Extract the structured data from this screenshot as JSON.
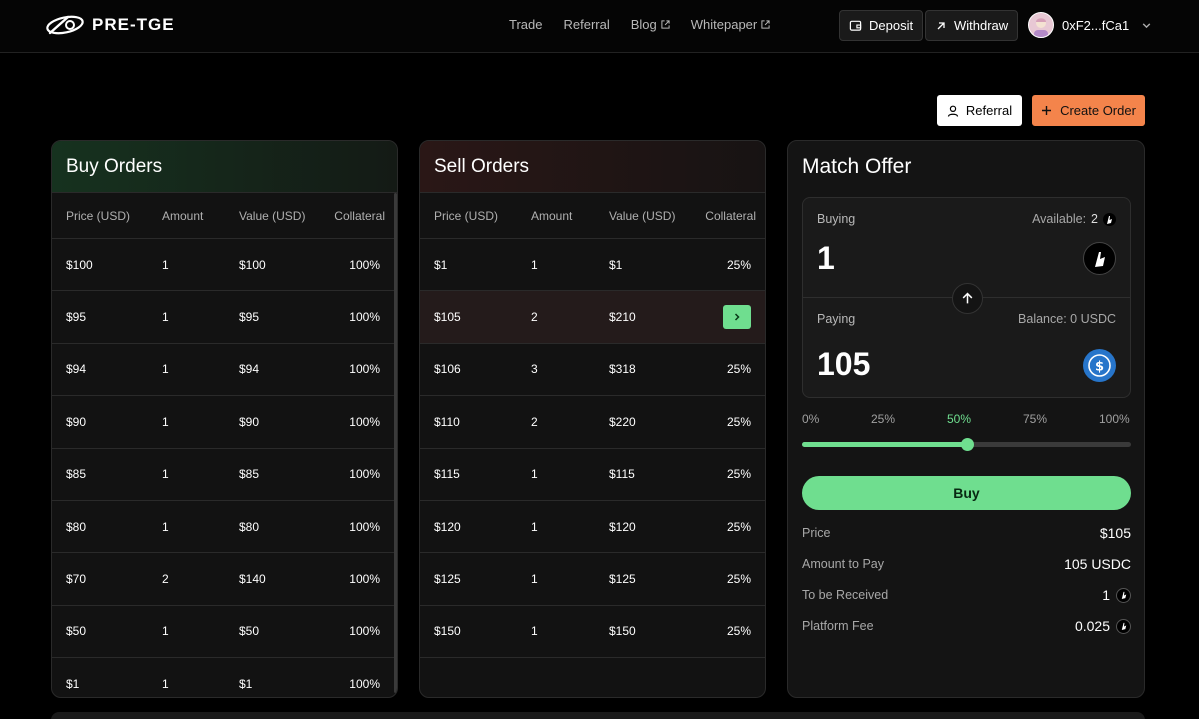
{
  "brand": {
    "name": "PRE-TGE"
  },
  "nav": {
    "trade": "Trade",
    "referral": "Referral",
    "blog": "Blog",
    "whitepaper": "Whitepaper"
  },
  "header": {
    "deposit": "Deposit",
    "withdraw": "Withdraw",
    "wallet": "0xF2...fCa1"
  },
  "actions": {
    "referral": "Referral",
    "create_order": "Create Order"
  },
  "columns": {
    "price": "Price (USD)",
    "amount": "Amount",
    "value": "Value (USD)",
    "collateral": "Collateral"
  },
  "buy_orders": {
    "title": "Buy Orders",
    "rows": [
      {
        "price": "$100",
        "amount": "1",
        "value": "$100",
        "collateral": "100%"
      },
      {
        "price": "$95",
        "amount": "1",
        "value": "$95",
        "collateral": "100%"
      },
      {
        "price": "$94",
        "amount": "1",
        "value": "$94",
        "collateral": "100%"
      },
      {
        "price": "$90",
        "amount": "1",
        "value": "$90",
        "collateral": "100%"
      },
      {
        "price": "$85",
        "amount": "1",
        "value": "$85",
        "collateral": "100%"
      },
      {
        "price": "$80",
        "amount": "1",
        "value": "$80",
        "collateral": "100%"
      },
      {
        "price": "$70",
        "amount": "2",
        "value": "$140",
        "collateral": "100%"
      },
      {
        "price": "$50",
        "amount": "1",
        "value": "$50",
        "collateral": "100%"
      },
      {
        "price": "$1",
        "amount": "1",
        "value": "$1",
        "collateral": "100%"
      }
    ]
  },
  "sell_orders": {
    "title": "Sell Orders",
    "rows": [
      {
        "price": "$1",
        "amount": "1",
        "value": "$1",
        "collateral": "25%"
      },
      {
        "price": "$105",
        "amount": "2",
        "value": "$210",
        "collateral": "",
        "selected": true
      },
      {
        "price": "$106",
        "amount": "3",
        "value": "$318",
        "collateral": "25%"
      },
      {
        "price": "$110",
        "amount": "2",
        "value": "$220",
        "collateral": "25%"
      },
      {
        "price": "$115",
        "amount": "1",
        "value": "$115",
        "collateral": "25%"
      },
      {
        "price": "$120",
        "amount": "1",
        "value": "$120",
        "collateral": "25%"
      },
      {
        "price": "$125",
        "amount": "1",
        "value": "$125",
        "collateral": "25%"
      },
      {
        "price": "$150",
        "amount": "1",
        "value": "$150",
        "collateral": "25%"
      }
    ]
  },
  "match": {
    "title": "Match Offer",
    "buying_label": "Buying",
    "available_label": "Available:",
    "available_value": "2",
    "buying_amount": "1",
    "paying_label": "Paying",
    "balance_label": "Balance: 0 USDC",
    "paying_amount": "105",
    "percents": [
      "0%",
      "25%",
      "50%",
      "75%",
      "100%"
    ],
    "active_percent": "50%",
    "slider_value": 0.5,
    "buy_button": "Buy",
    "price_label": "Price",
    "price_value": "$105",
    "amount_to_pay_label": "Amount to Pay",
    "amount_to_pay_value": "105 USDC",
    "to_receive_label": "To be Received",
    "to_receive_value": "1",
    "fee_label": "Platform Fee",
    "fee_value": "0.025"
  },
  "colors": {
    "accent_green": "#6fde8f",
    "accent_orange": "#f4844b",
    "usdc_blue": "#2775ca"
  }
}
